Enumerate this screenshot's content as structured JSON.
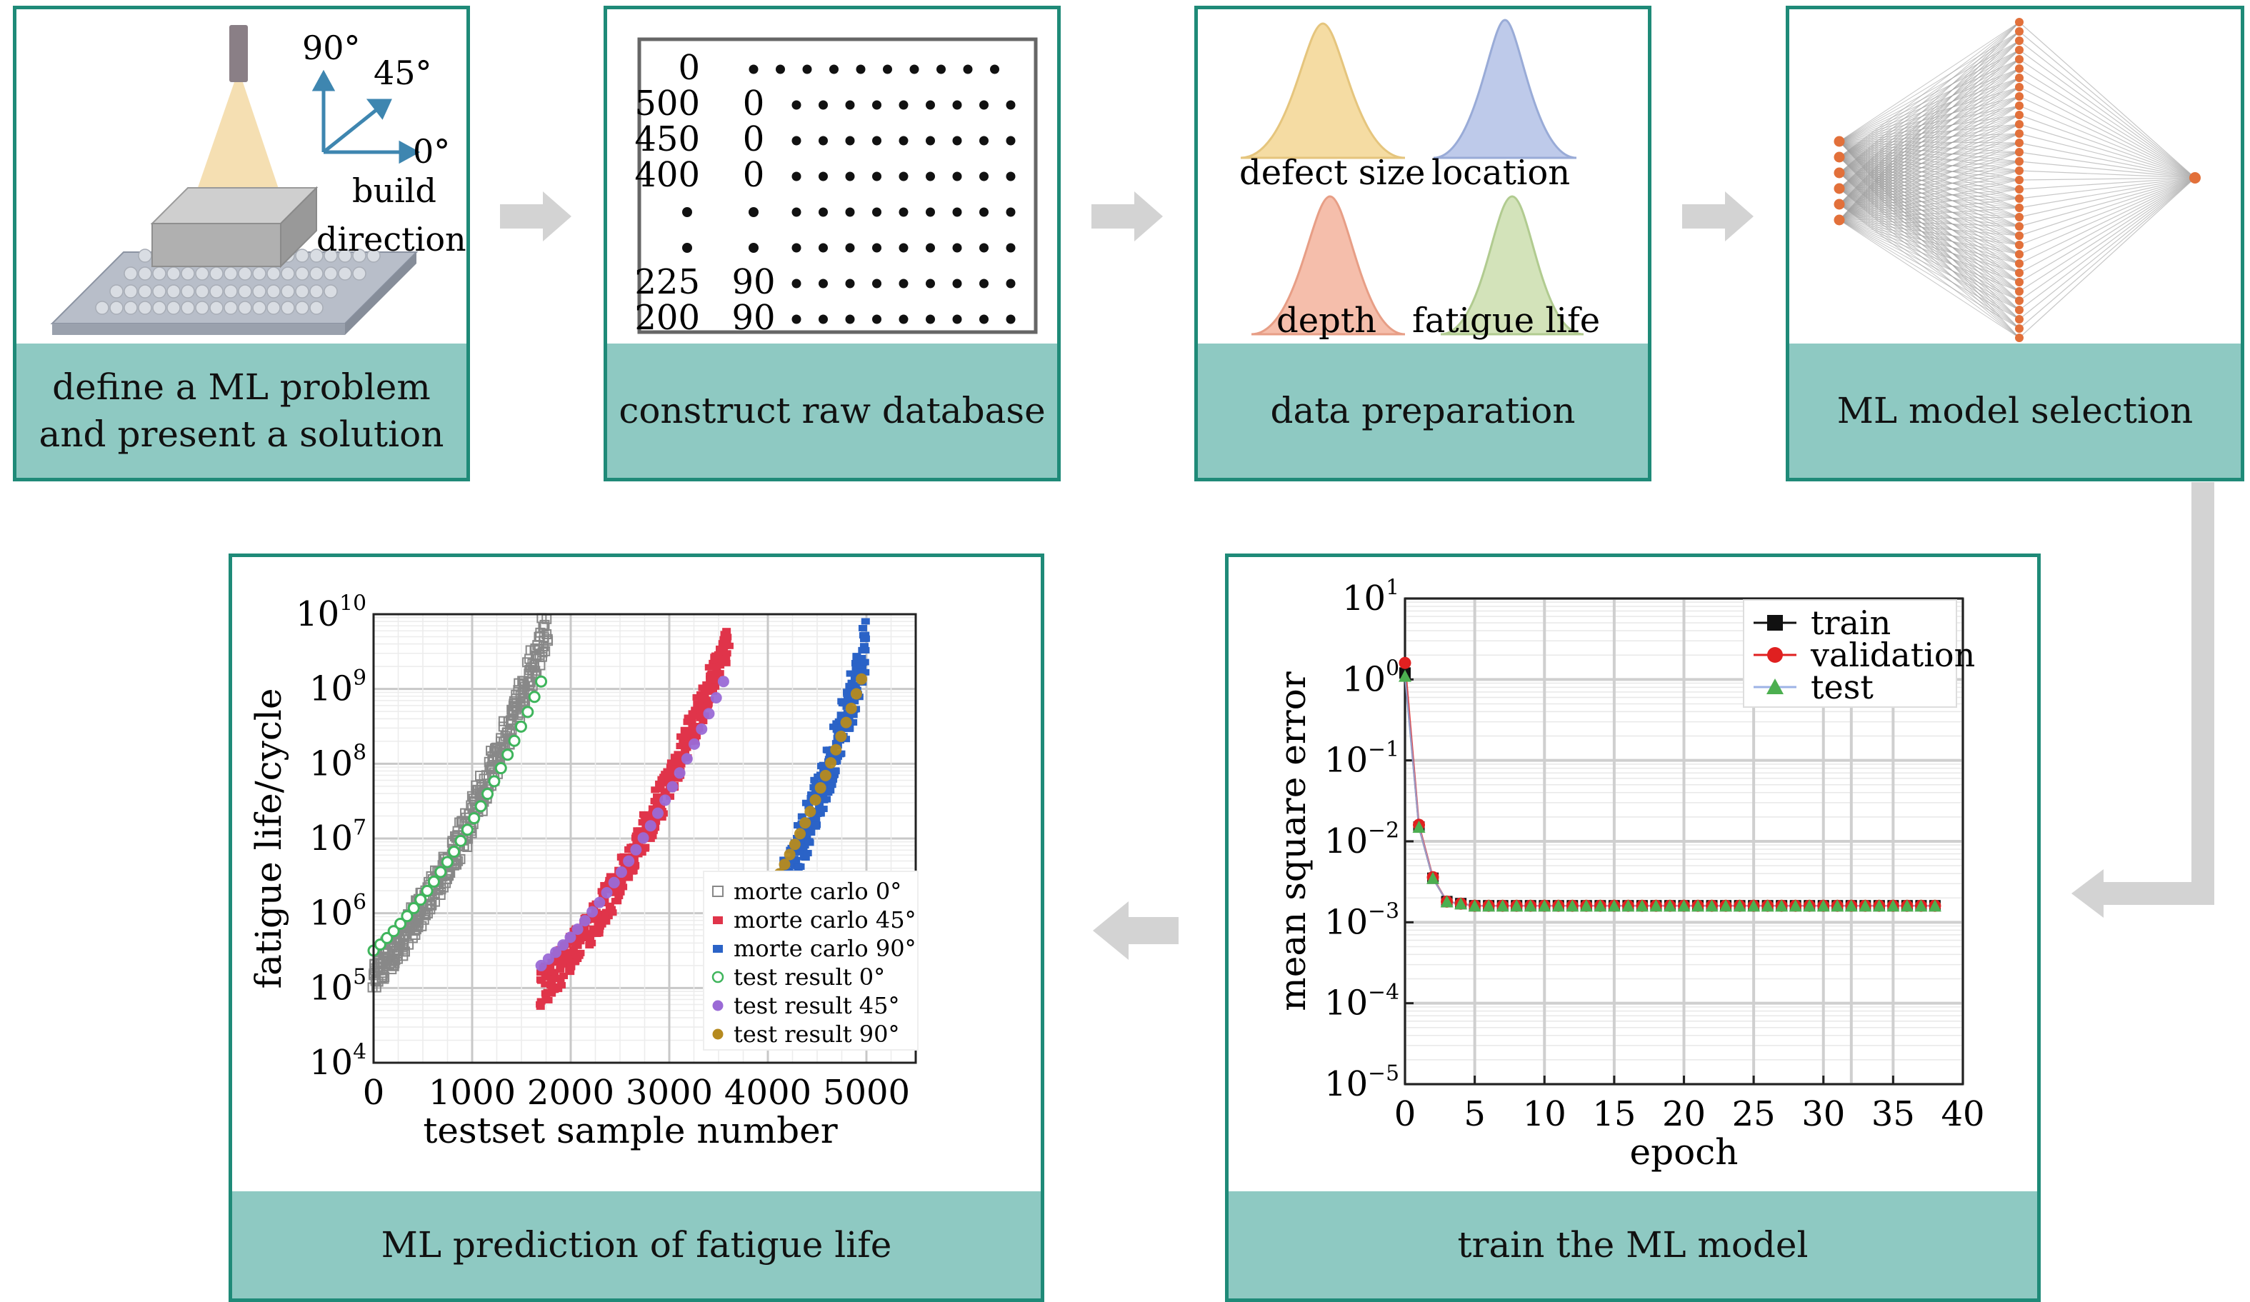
{
  "colors": {
    "panel_border": "#1f8a78",
    "label_band": "#8ec9c2",
    "arrow": "#d3d3d3",
    "laser_beam": "#f3d9a4",
    "substrate": "#b8bec9",
    "dist_defect": "#f4d99a",
    "dist_location": "#b7c5e8",
    "dist_depth": "#f4b8a2",
    "dist_fatigue": "#cfe1b3",
    "nn_node": "#e2703a",
    "mc0": "#888888",
    "mc45": "#e0344a",
    "mc90": "#2b63c7",
    "tr0": "#3fb55c",
    "tr45": "#9a6ad6",
    "tr90": "#b58a1f",
    "train": "#111111",
    "validation": "#e02020",
    "test": "#4caf50"
  },
  "panels": {
    "p1": {
      "label_line1": "define a ML problem",
      "label_line2": "and present a solution"
    },
    "p2": {
      "label": "construct raw database"
    },
    "p3": {
      "label": "data preparation"
    },
    "p4": {
      "label": "ML model selection"
    },
    "p5": {
      "label": "train the ML model"
    },
    "p6": {
      "label": "ML prediction of fatigue life"
    }
  },
  "build": {
    "angle_90": "90°",
    "angle_45": "45°",
    "angle_0": "0°",
    "line1": "build",
    "line2": "direction"
  },
  "database": {
    "rows": [
      {
        "a": "0",
        "b": ""
      },
      {
        "a": "500",
        "b": "0"
      },
      {
        "a": "450",
        "b": "0"
      },
      {
        "a": "400",
        "b": "0"
      },
      {
        "a": "•",
        "b": "•"
      },
      {
        "a": "•",
        "b": "•"
      },
      {
        "a": "225",
        "b": "90"
      },
      {
        "a": "200",
        "b": "90"
      }
    ]
  },
  "distributions": {
    "defect_size": "defect size",
    "location": "location",
    "depth": "depth",
    "fatigue_life": "fatigue life"
  },
  "training_chart": {
    "ylabel": "mean square error",
    "xlabel": "epoch",
    "ytick_labels": [
      {
        "base": "10",
        "exp": "1"
      },
      {
        "base": "10",
        "exp": "0"
      },
      {
        "base": "10",
        "exp": "−1"
      },
      {
        "base": "10",
        "exp": "−2"
      },
      {
        "base": "10",
        "exp": "−3"
      },
      {
        "base": "10",
        "exp": "−4"
      },
      {
        "base": "10",
        "exp": "−5"
      }
    ],
    "xtick_labels": [
      "0",
      "5",
      "10",
      "15",
      "20",
      "25",
      "30",
      "35",
      "40"
    ],
    "legend": {
      "train": "train",
      "validation": "validation",
      "test": "test"
    }
  },
  "prediction_chart": {
    "ylabel": "fatigue life/cycle",
    "xlabel": "testset sample number",
    "ytick_labels": [
      {
        "base": "10",
        "exp": "10"
      },
      {
        "base": "10",
        "exp": "9"
      },
      {
        "base": "10",
        "exp": "8"
      },
      {
        "base": "10",
        "exp": "7"
      },
      {
        "base": "10",
        "exp": "6"
      },
      {
        "base": "10",
        "exp": "5"
      },
      {
        "base": "10",
        "exp": "4"
      }
    ],
    "xtick_labels": [
      "0",
      "1000",
      "2000",
      "3000",
      "4000",
      "5000"
    ],
    "legend": [
      {
        "label": "morte carlo 0°",
        "key": "mc0"
      },
      {
        "label": "morte carlo 45°",
        "key": "mc45"
      },
      {
        "label": "morte carlo 90°",
        "key": "mc90"
      },
      {
        "label": "test result 0°",
        "key": "tr0"
      },
      {
        "label": "test result 45°",
        "key": "tr45"
      },
      {
        "label": "test result 90°",
        "key": "tr90"
      }
    ]
  },
  "chart_data": [
    {
      "type": "line",
      "title": "",
      "xlabel": "epoch",
      "ylabel": "mean square error",
      "xlim": [
        0,
        40
      ],
      "ylim_log10": [
        -5,
        1
      ],
      "yscale": "log",
      "x": [
        0,
        1,
        2,
        3,
        4,
        5,
        6,
        7,
        8,
        9,
        10,
        11,
        12,
        13,
        14,
        15,
        16,
        17,
        18,
        19,
        20,
        21,
        22,
        23,
        24,
        25,
        26,
        27,
        28,
        29,
        30,
        31,
        32,
        33,
        34,
        35,
        36,
        37,
        38
      ],
      "series": [
        {
          "name": "train",
          "values": [
            1.2,
            0.015,
            0.0035,
            0.0018,
            0.0017,
            0.0016,
            0.0016,
            0.0016,
            0.0016,
            0.0016,
            0.0016,
            0.0016,
            0.0016,
            0.0016,
            0.0016,
            0.0016,
            0.0016,
            0.0016,
            0.0016,
            0.0016,
            0.0016,
            0.0016,
            0.0016,
            0.0016,
            0.0016,
            0.0016,
            0.0016,
            0.0016,
            0.0016,
            0.0016,
            0.0016,
            0.0016,
            0.0016,
            0.0016,
            0.0016,
            0.0016,
            0.0016,
            0.0016,
            0.0016
          ]
        },
        {
          "name": "validation",
          "values": [
            1.6,
            0.016,
            0.0036,
            0.0018,
            0.0017,
            0.0016,
            0.0016,
            0.0016,
            0.0016,
            0.0016,
            0.0016,
            0.0016,
            0.0016,
            0.0016,
            0.0016,
            0.0016,
            0.0016,
            0.0016,
            0.0016,
            0.0016,
            0.0016,
            0.0016,
            0.0016,
            0.0016,
            0.0016,
            0.0016,
            0.0016,
            0.0016,
            0.0016,
            0.0016,
            0.0016,
            0.0016,
            0.0016,
            0.0016,
            0.0016,
            0.0016,
            0.0016,
            0.0016,
            0.0016
          ]
        },
        {
          "name": "test",
          "values": [
            1.1,
            0.015,
            0.0035,
            0.0018,
            0.0017,
            0.0016,
            0.0016,
            0.0016,
            0.0016,
            0.0016,
            0.0016,
            0.0016,
            0.0016,
            0.0016,
            0.0016,
            0.0016,
            0.0016,
            0.0016,
            0.0016,
            0.0016,
            0.0016,
            0.0016,
            0.0016,
            0.0016,
            0.0016,
            0.0016,
            0.0016,
            0.0016,
            0.0016,
            0.0016,
            0.0016,
            0.0016,
            0.0016,
            0.0016,
            0.0016,
            0.0016,
            0.0016,
            0.0016,
            0.0016
          ]
        }
      ],
      "legend": "top-right"
    },
    {
      "type": "scatter",
      "title": "",
      "xlabel": "testset sample number",
      "ylabel": "fatigue life/cycle",
      "xlim": [
        0,
        5500
      ],
      "ylim_log10": [
        4,
        10
      ],
      "yscale": "log",
      "series": [
        {
          "name": "morte carlo 0°",
          "x_range": [
            0,
            1750
          ],
          "log10_start": 5.2,
          "log10_end": 9.8,
          "spread": 0.5
        },
        {
          "name": "morte carlo 45°",
          "x_range": [
            1700,
            3600
          ],
          "log10_start": 5.0,
          "log10_end": 9.7,
          "spread": 0.5
        },
        {
          "name": "morte carlo 90°",
          "x_range": [
            3600,
            5000
          ],
          "log10_start": 5.0,
          "log10_end": 9.8,
          "spread": 0.7
        },
        {
          "name": "test result 0°",
          "x_range": [
            0,
            1700
          ],
          "log10_start": 5.5,
          "log10_end": 9.1,
          "spread": 0
        },
        {
          "name": "test result 45°",
          "x_range": [
            1700,
            3550
          ],
          "log10_start": 5.3,
          "log10_end": 9.1,
          "spread": 0
        },
        {
          "name": "test result 90°",
          "x_range": [
            3650,
            4950
          ],
          "log10_start": 5.6,
          "log10_end": 9.3,
          "spread": 0
        }
      ],
      "legend": "bottom-right"
    }
  ]
}
